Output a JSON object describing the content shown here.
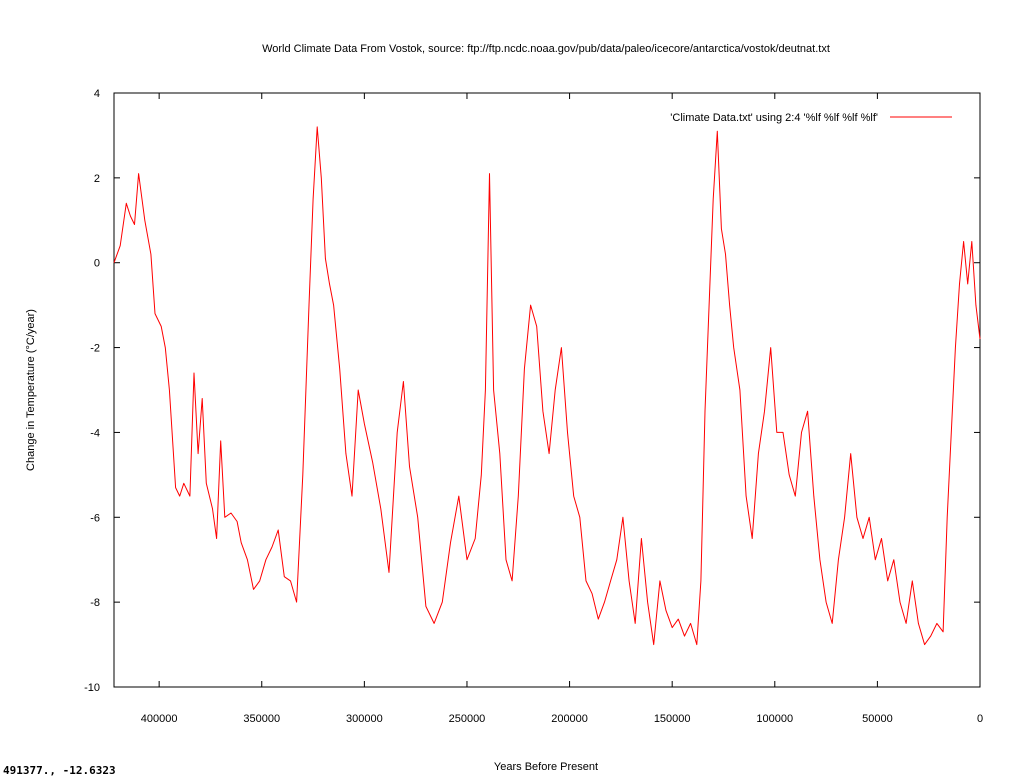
{
  "window": {
    "status_readout": "491377., -12.6323"
  },
  "chart_data": {
    "type": "line",
    "title": "World Climate Data From Vostok, source: ftp://ftp.ncdc.noaa.gov/pub/data/paleo/icecore/antarctica/vostok/deutnat.txt",
    "xlabel": "Years Before Present",
    "ylabel": "Change in Temperature (°C/year)",
    "xlim": [
      422000,
      0
    ],
    "ylim": [
      -10,
      4
    ],
    "x_ticks": [
      400000,
      350000,
      300000,
      250000,
      200000,
      150000,
      100000,
      50000,
      0
    ],
    "y_ticks": [
      4,
      2,
      0,
      -2,
      -4,
      -6,
      -8,
      -10
    ],
    "grid": false,
    "legend_position": "top-right",
    "series": [
      {
        "name": "'Climate Data.txt' using 2:4 '%lf  %lf  %lf %lf'",
        "color": "#ff0000",
        "x": [
          422000,
          419000,
          416000,
          414000,
          412000,
          410000,
          407000,
          404000,
          402000,
          399000,
          397000,
          395000,
          392000,
          390000,
          388000,
          385000,
          383000,
          381000,
          379000,
          377000,
          374000,
          372000,
          370000,
          368000,
          365000,
          362000,
          360000,
          357000,
          354000,
          351000,
          348000,
          345000,
          342000,
          339000,
          336000,
          333000,
          330000,
          327000,
          325000,
          323000,
          321000,
          319000,
          317000,
          315000,
          312000,
          309000,
          306000,
          303000,
          300000,
          296000,
          292000,
          288000,
          284000,
          281000,
          278000,
          274000,
          270000,
          266000,
          262000,
          258000,
          254000,
          250000,
          246000,
          243000,
          241000,
          239000,
          237000,
          234000,
          231000,
          228000,
          225000,
          222000,
          219000,
          216000,
          213000,
          210000,
          207000,
          204000,
          201000,
          198000,
          195000,
          192000,
          189000,
          186000,
          183000,
          180000,
          177000,
          174000,
          171000,
          168000,
          165000,
          162000,
          159000,
          156000,
          153000,
          150000,
          147000,
          144000,
          141000,
          138000,
          136000,
          134000,
          132000,
          130000,
          128000,
          126000,
          124000,
          122000,
          120000,
          117000,
          114000,
          111000,
          108000,
          105000,
          102000,
          99000,
          96000,
          93000,
          90000,
          87000,
          84000,
          81000,
          78000,
          75000,
          72000,
          69000,
          66000,
          63000,
          60000,
          57000,
          54000,
          51000,
          48000,
          45000,
          42000,
          39000,
          36000,
          33000,
          30000,
          27000,
          24000,
          21000,
          18000,
          16000,
          14000,
          12000,
          10000,
          8000,
          6000,
          4000,
          2000,
          0
        ],
        "values": [
          0.0,
          0.4,
          1.4,
          1.1,
          0.9,
          2.1,
          1.0,
          0.2,
          -1.2,
          -1.5,
          -2.0,
          -3.0,
          -5.3,
          -5.5,
          -5.2,
          -5.5,
          -2.6,
          -4.5,
          -3.2,
          -5.2,
          -5.8,
          -6.5,
          -4.2,
          -6.0,
          -5.9,
          -6.1,
          -6.6,
          -7.0,
          -7.7,
          -7.5,
          -7.0,
          -6.7,
          -6.3,
          -7.4,
          -7.5,
          -8.0,
          -5.0,
          -1.0,
          1.5,
          3.2,
          2.0,
          0.1,
          -0.5,
          -1.0,
          -2.5,
          -4.5,
          -5.5,
          -3.0,
          -3.8,
          -4.7,
          -5.8,
          -7.3,
          -4.0,
          -2.8,
          -4.8,
          -6.0,
          -8.1,
          -8.5,
          -8.0,
          -6.6,
          -5.5,
          -7.0,
          -6.5,
          -5.0,
          -3.0,
          2.1,
          -3.0,
          -4.5,
          -7.0,
          -7.5,
          -5.5,
          -2.5,
          -1.0,
          -1.5,
          -3.5,
          -4.5,
          -3.0,
          -2.0,
          -4.0,
          -5.5,
          -6.0,
          -7.5,
          -7.8,
          -8.4,
          -8.0,
          -7.5,
          -7.0,
          -6.0,
          -7.5,
          -8.5,
          -6.5,
          -8.0,
          -9.0,
          -7.5,
          -8.2,
          -8.6,
          -8.4,
          -8.8,
          -8.5,
          -9.0,
          -7.5,
          -3.5,
          -1.0,
          1.5,
          3.1,
          0.8,
          0.2,
          -1.0,
          -2.0,
          -3.0,
          -5.5,
          -6.5,
          -4.5,
          -3.5,
          -2.0,
          -4.0,
          -4.0,
          -5.0,
          -5.5,
          -4.0,
          -3.5,
          -5.5,
          -7.0,
          -8.0,
          -8.5,
          -7.0,
          -6.0,
          -4.5,
          -6.0,
          -6.5,
          -6.0,
          -7.0,
          -6.5,
          -7.5,
          -7.0,
          -8.0,
          -8.5,
          -7.5,
          -8.5,
          -9.0,
          -8.8,
          -8.5,
          -8.7,
          -6.0,
          -4.0,
          -2.0,
          -0.5,
          0.5,
          -0.5,
          0.5,
          -1.0,
          -1.8
        ]
      }
    ]
  }
}
